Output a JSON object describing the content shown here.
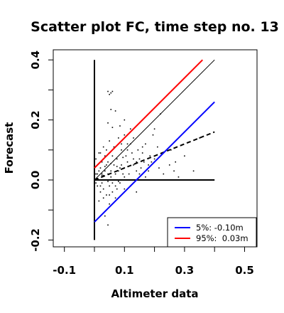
{
  "chart_data": {
    "type": "scatter",
    "title": "Scatter plot FC, time step no. 13",
    "xlabel": "Altimeter data",
    "ylabel": "Forecast",
    "xlim": [
      -0.12,
      0.54
    ],
    "ylim": [
      -0.21,
      0.41
    ],
    "x_ticks": [
      -0.1,
      0.1,
      0.3,
      0.5
    ],
    "x_tick_labels": [
      "-0.1",
      "0.1",
      "0.3",
      "0.5"
    ],
    "y_ticks": [
      -0.2,
      0.0,
      0.2,
      0.4
    ],
    "y_tick_labels": [
      "-0.2",
      "0.0",
      "0.2",
      "0.4"
    ],
    "grid": false,
    "legend_position": "bottom-right",
    "reference_lines": [
      {
        "kind": "vertical",
        "x": 0.0,
        "y_range": [
          -0.2,
          0.4
        ],
        "color": "#000000",
        "style": "solid"
      },
      {
        "kind": "horizontal",
        "y": 0.0,
        "x_range": [
          0.0,
          0.4
        ],
        "color": "#000000",
        "style": "solid"
      },
      {
        "kind": "identity",
        "from": [
          0.0,
          0.0
        ],
        "to": [
          0.4,
          0.4
        ],
        "color": "#000000",
        "style": "solid"
      },
      {
        "kind": "regression",
        "from": [
          0.0,
          0.0
        ],
        "to": [
          0.4,
          0.16
        ],
        "color": "#000000",
        "style": "dashed"
      }
    ],
    "series": [
      {
        "name": "5%: -0.10m",
        "type": "line",
        "color": "#0000ff",
        "from": [
          0.0,
          -0.14
        ],
        "to": [
          0.4,
          0.26
        ]
      },
      {
        "name": "95%:  0.03m",
        "type": "line",
        "color": "#ff0000",
        "from": [
          0.0,
          0.04
        ],
        "to": [
          0.36,
          0.4
        ]
      }
    ],
    "points": [
      [
        0.045,
        0.295
      ],
      [
        0.055,
        0.29
      ],
      [
        0.05,
        0.285
      ],
      [
        0.06,
        0.295
      ],
      [
        0.07,
        0.23
      ],
      [
        0.055,
        0.235
      ],
      [
        0.085,
        0.18
      ],
      [
        0.045,
        0.19
      ],
      [
        0.06,
        0.175
      ],
      [
        0.1,
        0.2
      ],
      [
        0.11,
        0.12
      ],
      [
        0.13,
        0.14
      ],
      [
        0.12,
        0.12
      ],
      [
        0.16,
        0.09
      ],
      [
        0.2,
        0.17
      ],
      [
        0.22,
        0.22
      ],
      [
        0.25,
        0.05
      ],
      [
        0.27,
        0.06
      ],
      [
        0.28,
        0.01
      ],
      [
        0.3,
        0.08
      ],
      [
        0.24,
        0.1
      ],
      [
        0.18,
        0.03
      ],
      [
        0.19,
        0.06
      ],
      [
        0.17,
        0.12
      ],
      [
        0.15,
        0.07
      ],
      [
        0.14,
        0.03
      ],
      [
        0.21,
        0.11
      ],
      [
        0.23,
        0.02
      ],
      [
        0.35,
        0.14
      ],
      [
        0.33,
        0.03
      ],
      [
        0.1,
        -0.03
      ],
      [
        0.12,
        -0.02
      ],
      [
        0.14,
        -0.04
      ],
      [
        0.16,
        0.0
      ],
      [
        0.2,
        0.0
      ],
      [
        0.22,
        0.0
      ],
      [
        0.09,
        0.1
      ],
      [
        0.08,
        0.14
      ],
      [
        0.065,
        0.11
      ],
      [
        0.03,
        0.07
      ],
      [
        0.04,
        0.05
      ],
      [
        0.035,
        0.08
      ],
      [
        0.025,
        0.06
      ],
      [
        0.02,
        0.04
      ],
      [
        0.01,
        0.02
      ],
      [
        0.015,
        0.0
      ],
      [
        0.0,
        0.01
      ],
      [
        0.005,
        -0.01
      ],
      [
        0.02,
        -0.02
      ],
      [
        0.03,
        -0.03
      ],
      [
        0.05,
        -0.02
      ],
      [
        0.06,
        -0.01
      ],
      [
        0.07,
        0.02
      ],
      [
        0.08,
        0.03
      ],
      [
        0.09,
        0.05
      ],
      [
        0.1,
        0.04
      ],
      [
        0.11,
        0.06
      ],
      [
        0.045,
        0.02
      ],
      [
        0.04,
        -0.05
      ],
      [
        0.05,
        -0.08
      ],
      [
        0.035,
        -0.12
      ],
      [
        0.045,
        -0.15
      ],
      [
        0.06,
        -0.04
      ],
      [
        0.075,
        -0.03
      ],
      [
        0.085,
        -0.01
      ],
      [
        0.095,
        0.02
      ],
      [
        0.105,
        0.08
      ],
      [
        0.13,
        0.05
      ],
      [
        0.125,
        0.09
      ],
      [
        0.145,
        0.1
      ],
      [
        0.155,
        0.04
      ],
      [
        0.165,
        0.06
      ],
      [
        0.185,
        0.08
      ],
      [
        0.195,
        0.15
      ],
      [
        0.215,
        0.04
      ],
      [
        0.255,
        0.1
      ],
      [
        0.265,
        0.03
      ],
      [
        0.12,
        0.17
      ],
      [
        0.1,
        0.15
      ],
      [
        0.09,
        0.12
      ],
      [
        0.075,
        0.07
      ],
      [
        0.065,
        0.05
      ],
      [
        0.055,
        0.03
      ],
      [
        0.045,
        0.06
      ],
      [
        0.035,
        0.03
      ],
      [
        0.025,
        0.02
      ],
      [
        0.015,
        0.03
      ],
      [
        0.005,
        0.02
      ],
      [
        0.01,
        -0.02
      ],
      [
        0.025,
        -0.01
      ],
      [
        0.04,
        0.0
      ],
      [
        0.055,
        0.01
      ],
      [
        0.07,
        -0.02
      ],
      [
        0.085,
        0.04
      ],
      [
        0.03,
        0.11
      ],
      [
        0.02,
        0.09
      ],
      [
        0.05,
        0.13
      ],
      [
        0.04,
        0.1
      ],
      [
        0.06,
        0.08
      ],
      [
        0.0,
        0.05
      ],
      [
        0.005,
        0.07
      ],
      [
        0.015,
        0.09
      ],
      [
        0.0,
        -0.03
      ],
      [
        0.01,
        0.005
      ],
      [
        0.03,
        0.015
      ],
      [
        0.045,
        -0.005
      ],
      [
        0.065,
        0.0
      ],
      [
        0.08,
        -0.005
      ],
      [
        0.1,
        0.01
      ],
      [
        0.115,
        0.02
      ],
      [
        0.135,
        0.0
      ],
      [
        0.15,
        0.02
      ],
      [
        0.17,
        0.01
      ],
      [
        0.13,
        0.07
      ],
      [
        0.11,
        0.1
      ],
      [
        0.14,
        0.06
      ],
      [
        0.16,
        0.11
      ],
      [
        0.18,
        0.05
      ],
      [
        0.2,
        0.07
      ],
      [
        0.025,
        0.015
      ],
      [
        0.035,
        0.045
      ],
      [
        0.055,
        0.055
      ],
      [
        0.075,
        0.045
      ],
      [
        0.095,
        0.075
      ],
      [
        0.02,
        -0.04
      ],
      [
        0.03,
        -0.06
      ],
      [
        0.015,
        -0.07
      ],
      [
        0.05,
        -0.05
      ],
      [
        0.07,
        -0.06
      ]
    ]
  }
}
